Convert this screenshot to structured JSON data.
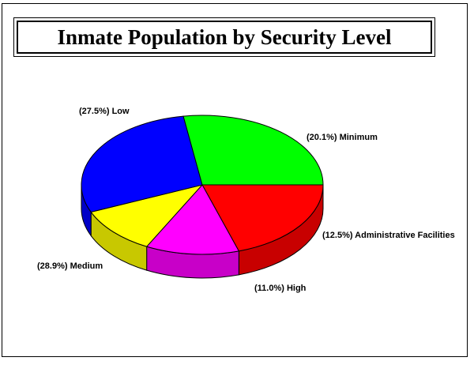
{
  "chart_data": {
    "type": "pie",
    "title": "Inmate Population by Security Level",
    "slices": [
      {
        "label": "Minimum",
        "value": 20.1,
        "display": "(20.1%) Minimum",
        "color": "#ff0000",
        "side": "#c80000"
      },
      {
        "label": "Administrative Facilities",
        "value": 12.5,
        "display": "(12.5%) Administrative Facilities",
        "color": "#ff00ff",
        "side": "#c800c8"
      },
      {
        "label": "High",
        "value": 11.0,
        "display": "(11.0%) High",
        "color": "#ffff00",
        "side": "#c8c800"
      },
      {
        "label": "Medium",
        "value": 28.9,
        "display": "(28.9%) Medium",
        "color": "#0000ff",
        "side": "#0000c8"
      },
      {
        "label": "Low",
        "value": 27.5,
        "display": "(27.5%) Low",
        "color": "#00ff00",
        "side": "#00c800"
      }
    ],
    "legend": "none",
    "three_d": true
  }
}
